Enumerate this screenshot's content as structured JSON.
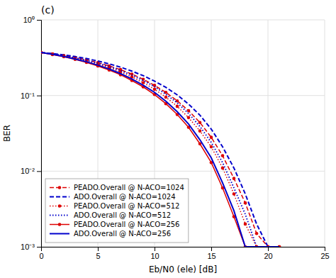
{
  "chart_data": {
    "type": "line",
    "title": "(c)",
    "x_label": "Eb/N0 (ele) [dB]",
    "y_label": "BER",
    "log": "y",
    "grid": true,
    "legend": "lower left",
    "xlim": [
      0,
      25
    ],
    "xticks": [
      0,
      5,
      10,
      15,
      20,
      25
    ],
    "ylim": [
      0.001,
      1
    ],
    "yticks": [
      {
        "value": 0.001,
        "label": "10⁻³"
      },
      {
        "value": 0.01,
        "label": "10⁻²"
      },
      {
        "value": 0.1,
        "label": "10⁻¹"
      },
      {
        "value": 1,
        "label": "10⁰"
      }
    ],
    "x": [
      0,
      1,
      2,
      3,
      4,
      5,
      6,
      7,
      8,
      9,
      10,
      11,
      12,
      13,
      14,
      15,
      16,
      17,
      18,
      19,
      20,
      21
    ],
    "series": [
      {
        "name": "PEADO.Overall @ N-ACO=1024",
        "color": "#dd0000",
        "line_style": "dashed",
        "marker": "circle",
        "values": [
          0.37,
          0.355,
          0.338,
          0.318,
          0.296,
          0.272,
          0.246,
          0.22,
          0.192,
          0.164,
          0.136,
          0.11,
          0.085,
          0.063,
          0.044,
          0.028,
          0.016,
          0.008,
          0.0038,
          0.0015,
          0.001,
          0.001
        ]
      },
      {
        "name": "ADO.Overall @ N-ACO=1024",
        "color": "#0000cc",
        "line_style": "dashed",
        "values": [
          0.37,
          0.358,
          0.344,
          0.327,
          0.308,
          0.286,
          0.262,
          0.237,
          0.21,
          0.183,
          0.155,
          0.128,
          0.102,
          0.077,
          0.055,
          0.036,
          0.021,
          0.011,
          0.005,
          0.002,
          0.001,
          0.001
        ]
      },
      {
        "name": "PEADO.Overall @ N-ACO=512",
        "color": "#dd0000",
        "line_style": "dotted",
        "marker": "circle",
        "values": [
          0.37,
          0.352,
          0.332,
          0.31,
          0.286,
          0.26,
          0.233,
          0.205,
          0.176,
          0.148,
          0.121,
          0.095,
          0.072,
          0.051,
          0.034,
          0.021,
          0.011,
          0.005,
          0.002,
          0.001,
          0.001,
          0.001
        ]
      },
      {
        "name": "ADO.Overall @ N-ACO=512",
        "color": "#0000cc",
        "line_style": "dotted",
        "values": [
          0.37,
          0.354,
          0.336,
          0.315,
          0.292,
          0.268,
          0.242,
          0.214,
          0.186,
          0.158,
          0.131,
          0.104,
          0.08,
          0.058,
          0.039,
          0.024,
          0.013,
          0.006,
          0.0027,
          0.001,
          0.001,
          0.001
        ]
      },
      {
        "name": "PEADO.Overall @ N-ACO=256",
        "color": "#dd0000",
        "line_style": "solid",
        "marker": "circle",
        "values": [
          0.37,
          0.348,
          0.325,
          0.3,
          0.274,
          0.246,
          0.217,
          0.188,
          0.158,
          0.13,
          0.103,
          0.078,
          0.056,
          0.038,
          0.023,
          0.013,
          0.006,
          0.0025,
          0.001,
          0.001,
          0.001,
          0.001
        ]
      },
      {
        "name": "ADO.Overall @ N-ACO=256",
        "color": "#0000cc",
        "line_style": "solid",
        "values": [
          0.37,
          0.35,
          0.328,
          0.304,
          0.279,
          0.252,
          0.224,
          0.195,
          0.165,
          0.137,
          0.11,
          0.084,
          0.061,
          0.042,
          0.026,
          0.015,
          0.007,
          0.003,
          0.001,
          0.001,
          0.001,
          0.001
        ]
      }
    ]
  }
}
